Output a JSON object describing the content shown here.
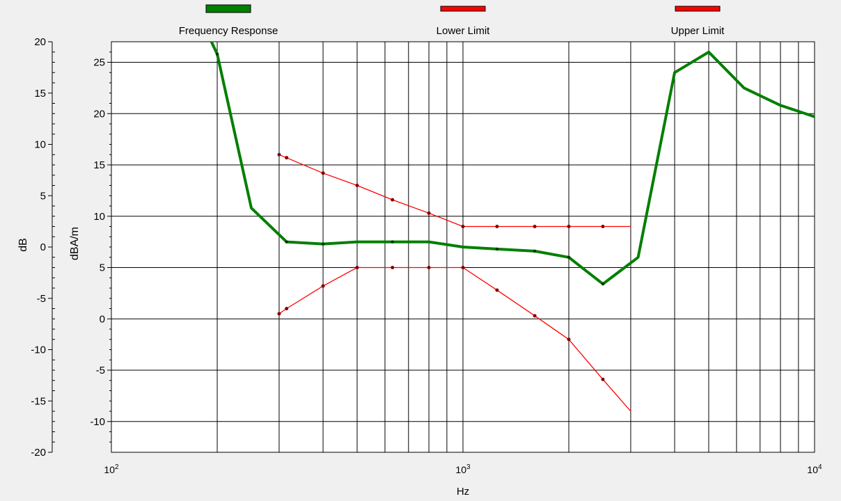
{
  "chart_data": {
    "type": "line",
    "x_scale": "log",
    "xlim": [
      100,
      10000
    ],
    "ylim_left": [
      -20,
      20
    ],
    "ylim_right": [
      -13,
      27
    ],
    "grid": true,
    "legend_position": "top",
    "xlabel": "Hz",
    "ylabel_left": "dB",
    "ylabel_right": "dBA/m",
    "x_ticks": [
      {
        "value": 100,
        "base": "10",
        "exp": "2"
      },
      {
        "value": 1000,
        "base": "10",
        "exp": "3"
      },
      {
        "value": 10000,
        "base": "10",
        "exp": "4"
      }
    ],
    "y_ticks_left": [
      20,
      15,
      10,
      5,
      0,
      -5,
      -10,
      -15,
      -20
    ],
    "y_ticks_right": [
      25,
      20,
      15,
      10,
      5,
      0,
      -5,
      -10
    ],
    "series": [
      {
        "name": "Frequency Response",
        "color": "#007f00",
        "points": [
          [
            175,
            30
          ],
          [
            200,
            25.8
          ],
          [
            250,
            10.8
          ],
          [
            315,
            7.5
          ],
          [
            400,
            7.3
          ],
          [
            500,
            7.5
          ],
          [
            630,
            7.5
          ],
          [
            800,
            7.5
          ],
          [
            1000,
            7.0
          ],
          [
            1250,
            6.8
          ],
          [
            1600,
            6.6
          ],
          [
            2000,
            6.0
          ],
          [
            2500,
            3.4
          ],
          [
            3150,
            6.0
          ],
          [
            4000,
            24.0
          ],
          [
            5000,
            26.0
          ],
          [
            6300,
            22.5
          ],
          [
            8000,
            20.8
          ],
          [
            10000,
            19.7
          ]
        ],
        "markers": [
          200,
          315,
          400,
          630,
          1250,
          1600,
          2000,
          2500
        ]
      },
      {
        "name": "Lower Limit",
        "color": "#ff0000",
        "points": [
          [
            300,
            0.5
          ],
          [
            315,
            1.0
          ],
          [
            400,
            3.2
          ],
          [
            500,
            5.0
          ],
          [
            630,
            5.0
          ],
          [
            800,
            5.0
          ],
          [
            1000,
            5.0
          ],
          [
            1250,
            2.8
          ],
          [
            1600,
            0.3
          ],
          [
            2000,
            -2.0
          ],
          [
            2500,
            -5.9
          ],
          [
            3000,
            -9.0
          ]
        ],
        "markers": [
          300,
          315,
          400,
          500,
          630,
          800,
          1000,
          1250,
          1600,
          2000,
          2500
        ]
      },
      {
        "name": "Upper Limit",
        "color": "#ff0000",
        "points": [
          [
            300,
            16.0
          ],
          [
            315,
            15.7
          ],
          [
            400,
            14.2
          ],
          [
            500,
            13.0
          ],
          [
            630,
            11.6
          ],
          [
            800,
            10.3
          ],
          [
            1000,
            9.0
          ],
          [
            1250,
            9.0
          ],
          [
            1600,
            9.0
          ],
          [
            2000,
            9.0
          ],
          [
            2500,
            9.0
          ],
          [
            3000,
            9.0
          ]
        ],
        "markers": [
          300,
          315,
          400,
          500,
          630,
          800,
          1000,
          1250,
          1600,
          2000,
          2500
        ]
      }
    ]
  }
}
